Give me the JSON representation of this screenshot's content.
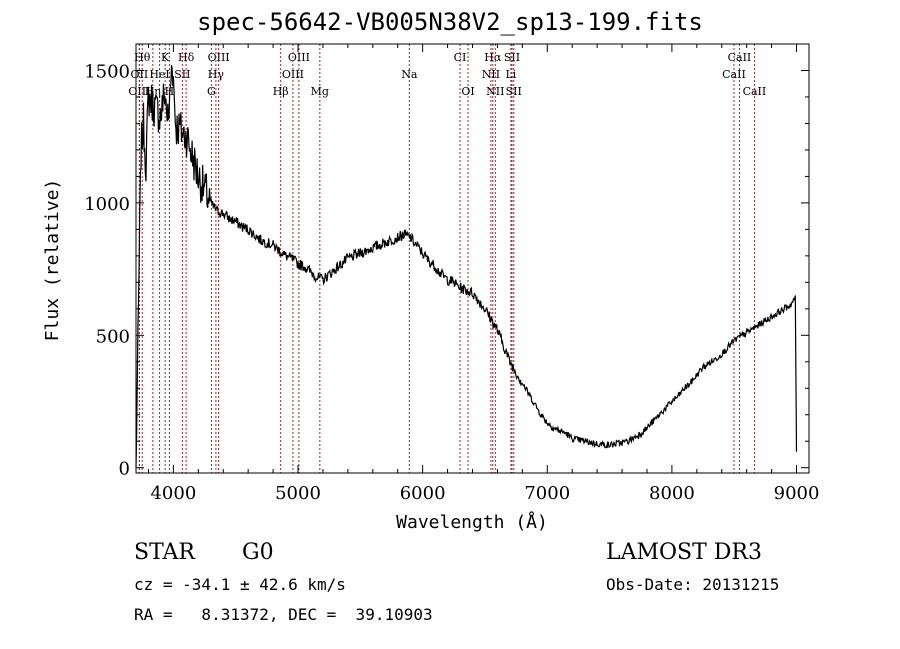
{
  "header": {
    "title": "spec-56642-VB005N38V2_sp13-199.fits"
  },
  "info": {
    "class": "STAR",
    "subclass": "G0",
    "survey": "LAMOST DR3",
    "cz": "cz = -34.1 ± 42.6 km/s",
    "obs_date": "Obs-Date: 20131215",
    "coords": "RA =   8.31372, DEC =  39.10903"
  },
  "colors": {
    "line": "#000000",
    "marker": "#aa2222"
  },
  "chart_data": {
    "type": "line",
    "title": "spec-56642-VB005N38V2_sp13-199.fits",
    "xlabel": "Wavelength (Å)",
    "ylabel": "Flux (relative)",
    "xlim": [
      3700,
      9100
    ],
    "ylim": [
      -20,
      1600
    ],
    "xticks": [
      4000,
      5000,
      6000,
      7000,
      8000,
      9000
    ],
    "yticks": [
      0,
      500,
      1000,
      1500
    ],
    "series": [
      {
        "name": "flux",
        "x": [
          3700,
          3720,
          3740,
          3760,
          3780,
          3800,
          3830,
          3860,
          3900,
          3930,
          3960,
          3990,
          4020,
          4050,
          4080,
          4110,
          4150,
          4200,
          4250,
          4300,
          4350,
          4400,
          4450,
          4500,
          4550,
          4600,
          4650,
          4700,
          4750,
          4800,
          4850,
          4900,
          4950,
          5000,
          5050,
          5100,
          5150,
          5200,
          5250,
          5300,
          5350,
          5400,
          5450,
          5500,
          5550,
          5600,
          5650,
          5700,
          5750,
          5800,
          5850,
          5900,
          5950,
          6000,
          6050,
          6100,
          6150,
          6200,
          6250,
          6300,
          6350,
          6400,
          6450,
          6500,
          6550,
          6600,
          6650,
          6700,
          6750,
          6800,
          6850,
          6900,
          6950,
          7000,
          7050,
          7100,
          7150,
          7200,
          7250,
          7300,
          7350,
          7400,
          7450,
          7500,
          7550,
          7600,
          7650,
          7700,
          7750,
          7800,
          7850,
          7900,
          7950,
          8000,
          8050,
          8100,
          8150,
          8200,
          8250,
          8300,
          8350,
          8400,
          8450,
          8500,
          8550,
          8600,
          8650,
          8700,
          8750,
          8800,
          8850,
          8900,
          8950,
          8990,
          9000
        ],
        "y": [
          0,
          600,
          1200,
          1300,
          1150,
          1400,
          1380,
          1350,
          1330,
          1420,
          1300,
          1550,
          1290,
          1280,
          1260,
          1250,
          1180,
          1100,
          1050,
          1000,
          970,
          960,
          940,
          930,
          910,
          900,
          880,
          860,
          850,
          840,
          820,
          800,
          790,
          770,
          760,
          740,
          720,
          710,
          730,
          750,
          770,
          790,
          800,
          810,
          820,
          830,
          840,
          850,
          860,
          870,
          880,
          870,
          840,
          810,
          780,
          760,
          730,
          710,
          700,
          680,
          670,
          660,
          630,
          600,
          560,
          520,
          460,
          400,
          360,
          320,
          280,
          240,
          200,
          170,
          150,
          140,
          130,
          110,
          105,
          100,
          95,
          90,
          88,
          85,
          90,
          95,
          100,
          115,
          130,
          150,
          175,
          200,
          225,
          250,
          270,
          300,
          320,
          350,
          380,
          395,
          410,
          430,
          455,
          480,
          495,
          510,
          525,
          540,
          555,
          570,
          585,
          600,
          615,
          640,
          60
        ]
      }
    ],
    "lines": [
      {
        "label": "Hθ",
        "x": 3750,
        "row": 0
      },
      {
        "label": "K",
        "x": 3934,
        "row": 0
      },
      {
        "label": "Hδ",
        "x": 4102,
        "row": 0
      },
      {
        "label": "OIII",
        "x": 4363,
        "row": 0
      },
      {
        "label": "OIII",
        "x": 5007,
        "row": 0
      },
      {
        "label": "CI",
        "x": 6300,
        "row": 0
      },
      {
        "label": "Hα",
        "x": 6563,
        "row": 0
      },
      {
        "label": "SII",
        "x": 6717,
        "row": 0
      },
      {
        "label": "CaII",
        "x": 8542,
        "row": 0
      },
      {
        "label": "OII",
        "x": 3727,
        "row": 1
      },
      {
        "label": "HeI",
        "x": 3889,
        "row": 1
      },
      {
        "label": "SII",
        "x": 4072,
        "row": 1
      },
      {
        "label": "Hγ",
        "x": 4341,
        "row": 1
      },
      {
        "label": "OIII",
        "x": 4959,
        "row": 1
      },
      {
        "label": "Na",
        "x": 5893,
        "row": 1
      },
      {
        "label": "NII",
        "x": 6548,
        "row": 1
      },
      {
        "label": "Li",
        "x": 6708,
        "row": 1
      },
      {
        "label": "CaII",
        "x": 8498,
        "row": 1
      },
      {
        "label": "OIII",
        "x": 3727,
        "row": 2
      },
      {
        "label": "Hη",
        "x": 3835,
        "row": 2
      },
      {
        "label": "H",
        "x": 3968,
        "row": 2
      },
      {
        "label": "G",
        "x": 4305,
        "row": 2
      },
      {
        "label": "Hβ",
        "x": 4861,
        "row": 2
      },
      {
        "label": "Mg",
        "x": 5175,
        "row": 2
      },
      {
        "label": "OI",
        "x": 6364,
        "row": 2
      },
      {
        "label": "NII",
        "x": 6583,
        "row": 2
      },
      {
        "label": "SII",
        "x": 6731,
        "row": 2
      },
      {
        "label": "CaII",
        "x": 8662,
        "row": 2
      }
    ]
  }
}
